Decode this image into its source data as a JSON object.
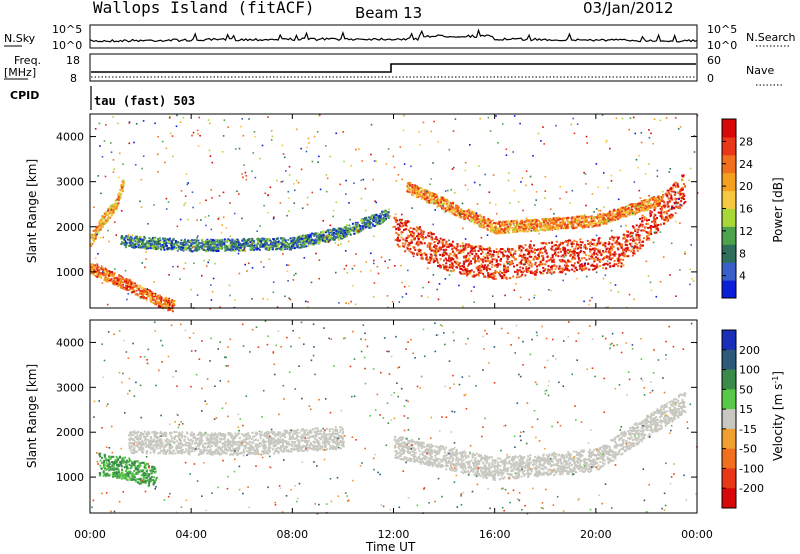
{
  "header": {
    "station": "Wallops Island (fitACF)",
    "beam": "Beam 13",
    "date": "03/Jan/2012"
  },
  "strip_panels": {
    "nsky": {
      "left_label": "N.Sky",
      "right_label": "N.Search",
      "left_ticks": [
        "10^5",
        "10^0"
      ],
      "right_ticks": [
        "10^5",
        "10^0"
      ]
    },
    "freq": {
      "left_label": "Freq.",
      "left_unit": "[MHz]",
      "right_label": "Nave",
      "left_ticks": [
        "18",
        "8"
      ],
      "right_ticks": [
        "60",
        "0"
      ]
    },
    "cpid": {
      "label": "CPID",
      "mode_text": "tau (fast) 503"
    }
  },
  "chart_data": [
    {
      "type": "heatmap",
      "title": "",
      "xlabel": "",
      "ylabel": "Slant Range [km]",
      "xlim": [
        "00:00",
        "24:00"
      ],
      "ylim": [
        200,
        4500
      ],
      "x_ticks": [
        "00:00",
        "04:00",
        "08:00",
        "12:00",
        "16:00",
        "20:00",
        "00:00"
      ],
      "y_ticks": [
        1000,
        2000,
        3000,
        4000
      ],
      "colorbar": {
        "label": "Power [dB]",
        "ticks": [
          4,
          8,
          12,
          16,
          20,
          24,
          28
        ],
        "range": [
          0,
          32
        ],
        "colors": [
          "#0a1fd8",
          "#3a5fc8",
          "#2e6e5a",
          "#4da34d",
          "#a8d838",
          "#f5c840",
          "#f5a020",
          "#f07020",
          "#e83818",
          "#d80808"
        ]
      },
      "features": [
        {
          "name": "early-F-echo-lower",
          "t": [
            0.0,
            1.6,
            2.6,
            3.3
          ],
          "range": [
            1100,
            700,
            400,
            250
          ],
          "power": 24
        },
        {
          "name": "early-F-echo-upper",
          "t": [
            0.0,
            0.4,
            1.0,
            1.3
          ],
          "range": [
            1700,
            2100,
            2500,
            3000
          ],
          "power": 20
        },
        {
          "name": "night-ionospheric-band",
          "t": [
            1.2,
            4.0,
            8.0,
            10.0,
            11.8
          ],
          "range": [
            1700,
            1600,
            1650,
            1900,
            2300
          ],
          "power": 8
        },
        {
          "name": "day-E-F-scatter-lower-edge",
          "t": [
            12.0,
            14.0,
            16.0,
            18.0,
            21.0,
            23.5
          ],
          "range": [
            1700,
            1100,
            900,
            1050,
            1200,
            2600
          ],
          "power": 28
        },
        {
          "name": "day-F-scatter-upper-band",
          "t": [
            12.5,
            16.0,
            20.0,
            22.5
          ],
          "range": [
            2900,
            2000,
            2150,
            2600
          ],
          "power": 22
        }
      ]
    },
    {
      "type": "heatmap",
      "title": "",
      "xlabel": "Time UT",
      "ylabel": "Slant Range [km]",
      "xlim": [
        "00:00",
        "24:00"
      ],
      "ylim": [
        200,
        4500
      ],
      "x_ticks": [
        "00:00",
        "04:00",
        "08:00",
        "12:00",
        "16:00",
        "20:00",
        "00:00"
      ],
      "y_ticks": [
        1000,
        2000,
        3000,
        4000
      ],
      "colorbar": {
        "label": "Velocity [m s^-1]",
        "ticks": [
          200,
          100,
          50,
          15,
          -15,
          -50,
          -100,
          -200
        ],
        "colors": [
          "#1a2fb8",
          "#2e5a7a",
          "#3a8a4a",
          "#58c848",
          "#c8c8c0",
          "#f0a030",
          "#f07020",
          "#e83818",
          "#d80808"
        ]
      },
      "features": [
        {
          "name": "early-green-positive",
          "t": [
            0.3,
            1.5,
            2.6
          ],
          "range": [
            1200,
            1100,
            900
          ],
          "velocity": 50
        },
        {
          "name": "ground-scatter-night",
          "t": [
            1.5,
            6.0,
            10.0
          ],
          "range": [
            1700,
            1650,
            1800
          ],
          "velocity": 0
        },
        {
          "name": "ground-scatter-day",
          "t": [
            12.0,
            16.0,
            20.0,
            23.5
          ],
          "range": [
            1600,
            1100,
            1300,
            2600
          ],
          "velocity": 0
        }
      ]
    }
  ]
}
